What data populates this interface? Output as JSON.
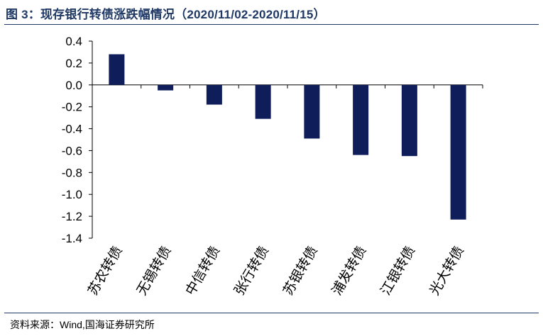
{
  "figure": {
    "title": "图 3：现存银行转债涨跌幅情况（2020/11/02-2020/11/15）",
    "source": "资料来源：Wind,国海证券研究所"
  },
  "chart_data": {
    "type": "bar",
    "categories": [
      "苏农转债",
      "无锡转债",
      "中信转债",
      "张行转债",
      "苏银转债",
      "浦发转债",
      "江银转债",
      "光大转债"
    ],
    "values": [
      0.28,
      -0.05,
      -0.18,
      -0.31,
      -0.49,
      -0.64,
      -0.65,
      -1.23
    ],
    "ylim": [
      -1.4,
      0.4
    ],
    "yticks": [
      "0.4",
      "0.2",
      "0.0",
      "-0.2",
      "-0.4",
      "-0.6",
      "-0.8",
      "-1.0",
      "-1.2",
      "-1.4"
    ],
    "xlabel": "",
    "ylabel": "",
    "legend": "none",
    "grid": false,
    "colors": {
      "bar": "#0f1e5a",
      "axis": "#000000"
    }
  }
}
